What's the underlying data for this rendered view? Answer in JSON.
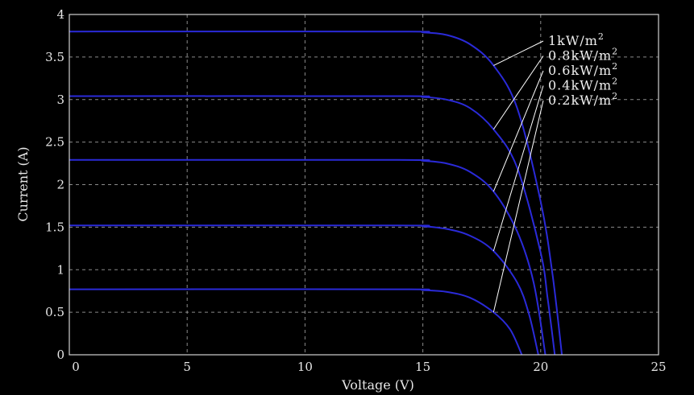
{
  "chart_data": {
    "type": "line",
    "xlabel": "Voltage (V)",
    "ylabel": "Current (A)",
    "xlim": [
      0,
      25
    ],
    "ylim": [
      0,
      4
    ],
    "xticks": [
      "0",
      "5",
      "10",
      "15",
      "20",
      "25"
    ],
    "yticks": [
      "0",
      "0.5",
      "1",
      "1.5",
      "2",
      "2.5",
      "3",
      "3.5",
      "4"
    ],
    "grid": true,
    "line_color": "#2a2ad8",
    "background": "#000000",
    "series": [
      {
        "name": "1kW/m²",
        "isc": 3.8,
        "voc": 20.9,
        "x": [
          0,
          13.9,
          15,
          16,
          17,
          18,
          19,
          20,
          20.5,
          20.9
        ],
        "y": [
          3.8,
          3.8,
          3.79,
          3.76,
          3.65,
          3.4,
          2.9,
          1.8,
          0.95,
          0
        ]
      },
      {
        "name": "0.8kW/m²",
        "isc": 3.04,
        "voc": 20.6,
        "x": [
          0,
          13.9,
          15,
          16,
          17,
          18,
          19,
          20,
          20.3,
          20.6
        ],
        "y": [
          3.04,
          3.04,
          3.03,
          3.0,
          2.9,
          2.65,
          2.2,
          1.2,
          0.65,
          0
        ]
      },
      {
        "name": "0.6kW/m²",
        "isc": 2.29,
        "voc": 20.2,
        "x": [
          0,
          13.9,
          15,
          16,
          17,
          18,
          19,
          19.7,
          20.2
        ],
        "y": [
          2.29,
          2.29,
          2.28,
          2.25,
          2.15,
          1.92,
          1.45,
          0.85,
          0
        ]
      },
      {
        "name": "0.4kW/m²",
        "isc": 1.52,
        "voc": 19.9,
        "x": [
          0,
          13.9,
          15,
          16,
          17,
          18,
          19,
          19.5,
          19.9
        ],
        "y": [
          1.52,
          1.52,
          1.51,
          1.48,
          1.4,
          1.22,
          0.85,
          0.48,
          0
        ]
      },
      {
        "name": "0.2kW/m²",
        "isc": 0.77,
        "voc": 19.2,
        "x": [
          0,
          13.9,
          15,
          16,
          17,
          18,
          18.7,
          19.2
        ],
        "y": [
          0.77,
          0.77,
          0.76,
          0.74,
          0.67,
          0.5,
          0.3,
          0
        ]
      }
    ]
  },
  "legend": {
    "entries": [
      {
        "label": "1kW/m",
        "sup": "2"
      },
      {
        "label": "0.8kW/m",
        "sup": "2"
      },
      {
        "label": "0.6kW/m",
        "sup": "2"
      },
      {
        "label": "0.4kW/m",
        "sup": "2"
      },
      {
        "label": "0.2kW/m",
        "sup": "2"
      }
    ]
  }
}
